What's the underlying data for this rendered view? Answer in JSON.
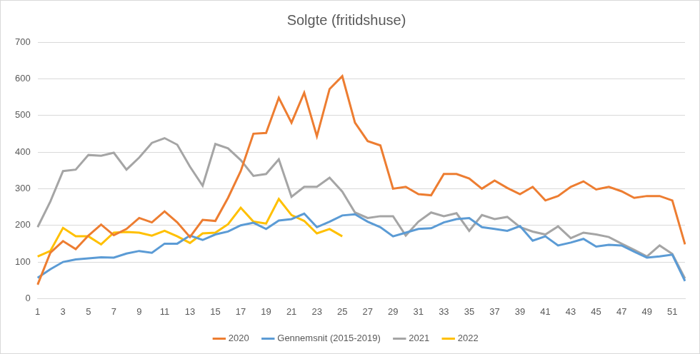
{
  "chart_data": {
    "type": "line",
    "title": "Solgte (fritidshuse)",
    "categories": [
      "1",
      null,
      "3",
      null,
      "5",
      null,
      "7",
      null,
      "9",
      null,
      "11",
      null,
      "13",
      null,
      "15",
      null,
      "17",
      null,
      "19",
      null,
      "21",
      null,
      "23",
      null,
      "25",
      null,
      "27",
      null,
      "29",
      null,
      "31",
      null,
      "33",
      null,
      "35",
      null,
      "37",
      null,
      "39",
      null,
      "41",
      null,
      "43",
      null,
      "45",
      null,
      "47",
      null,
      "49",
      null,
      "51",
      null
    ],
    "series": [
      {
        "name": "2020",
        "color": "#ED7D31",
        "values": [
          38,
          125,
          157,
          135,
          172,
          202,
          173,
          190,
          220,
          208,
          238,
          208,
          168,
          215,
          212,
          275,
          348,
          450,
          452,
          548,
          480,
          562,
          443,
          572,
          607,
          480,
          430,
          418,
          300,
          305,
          285,
          282,
          340,
          340,
          328,
          300,
          322,
          302,
          285,
          305,
          268,
          280,
          305,
          320,
          298,
          305,
          293,
          275,
          280,
          280,
          268,
          148
        ]
      },
      {
        "name": "Gennemsnit (2015-2019)",
        "color": "#5B9BD5",
        "values": [
          57,
          80,
          100,
          107,
          110,
          113,
          112,
          123,
          130,
          125,
          150,
          150,
          172,
          160,
          175,
          183,
          200,
          207,
          190,
          213,
          217,
          232,
          195,
          210,
          227,
          230,
          210,
          195,
          170,
          180,
          190,
          192,
          208,
          217,
          220,
          195,
          190,
          185,
          198,
          158,
          170,
          145,
          153,
          163,
          142,
          147,
          145,
          128,
          112,
          115,
          120,
          48
        ]
      },
      {
        "name": "2021",
        "color": "#A5A5A5",
        "values": [
          195,
          265,
          348,
          352,
          392,
          390,
          398,
          352,
          385,
          425,
          438,
          420,
          360,
          308,
          422,
          410,
          378,
          335,
          340,
          380,
          278,
          305,
          305,
          330,
          292,
          235,
          220,
          225,
          225,
          172,
          210,
          235,
          225,
          233,
          185,
          228,
          217,
          223,
          195,
          183,
          175,
          197,
          165,
          180,
          175,
          168,
          150,
          133,
          115,
          145,
          122,
          55
        ]
      },
      {
        "name": "2022",
        "color": "#FFC000",
        "values": [
          115,
          130,
          193,
          170,
          170,
          148,
          180,
          182,
          180,
          172,
          185,
          170,
          152,
          178,
          180,
          203,
          248,
          210,
          205,
          272,
          228,
          212,
          178,
          190,
          170,
          null,
          null,
          null,
          null,
          null,
          null,
          null,
          null,
          null,
          null,
          null,
          null,
          null,
          null,
          null,
          null,
          null,
          null,
          null,
          null,
          null,
          null,
          null,
          null,
          null,
          null,
          null
        ]
      }
    ],
    "ylim": [
      0,
      700
    ],
    "yticks": [
      0,
      100,
      200,
      300,
      400,
      500,
      600,
      700
    ],
    "grid": true,
    "legend": "bottom"
  }
}
